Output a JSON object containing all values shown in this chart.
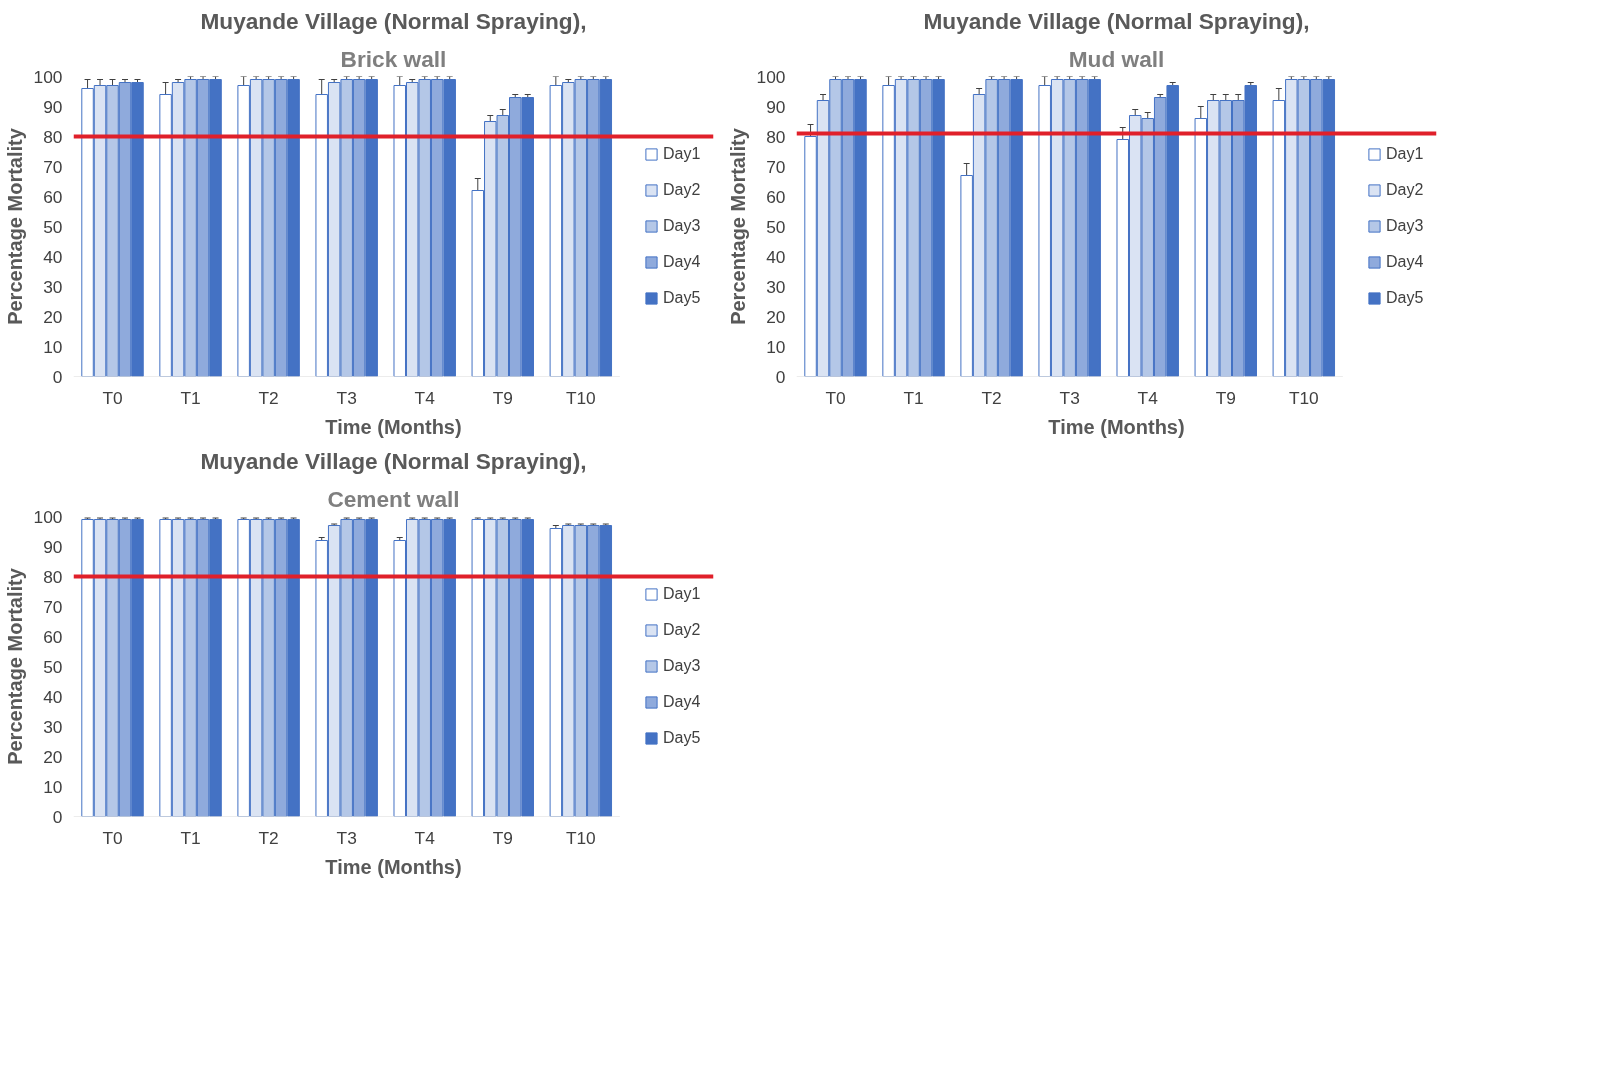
{
  "chart_data": [
    {
      "type": "bar",
      "title": "Muyande Village (Normal Spraying),",
      "subtitle": "Brick wall",
      "xlabel": "Time (Months)",
      "ylabel": "Percentage Mortality",
      "categories": [
        "T0",
        "T1",
        "T2",
        "T3",
        "T4",
        "T9",
        "T10"
      ],
      "ylim": [
        0,
        100
      ],
      "yticks": [
        0,
        10,
        20,
        30,
        40,
        50,
        60,
        70,
        80,
        90,
        100
      ],
      "grid": false,
      "legend": "right",
      "ref_lines": [
        {
          "axis": "y",
          "value": 80,
          "color": "#e0202a"
        }
      ],
      "series": [
        {
          "name": "Day1",
          "color": "#ffffff",
          "values": [
            96,
            94,
            97,
            94,
            97,
            62,
            97
          ],
          "errors": [
            3,
            4,
            3,
            5,
            3,
            4,
            3
          ]
        },
        {
          "name": "Day2",
          "color": "#dae3f3",
          "values": [
            97,
            98,
            99,
            98,
            98,
            85,
            98
          ],
          "errors": [
            2,
            1,
            1,
            1,
            1,
            2,
            1
          ]
        },
        {
          "name": "Day3",
          "color": "#b4c7e7",
          "values": [
            97,
            99,
            99,
            99,
            99,
            87,
            99
          ],
          "errors": [
            2,
            1,
            1,
            1,
            1,
            2,
            1
          ]
        },
        {
          "name": "Day4",
          "color": "#8faadc",
          "values": [
            98,
            99,
            99,
            99,
            99,
            93,
            99
          ],
          "errors": [
            1,
            1,
            1,
            1,
            1,
            1,
            1
          ]
        },
        {
          "name": "Day5",
          "color": "#4472c4",
          "values": [
            98,
            99,
            99,
            99,
            99,
            93,
            99
          ],
          "errors": [
            1,
            1,
            1,
            1,
            1,
            1,
            1
          ]
        }
      ]
    },
    {
      "type": "bar",
      "title": "Muyande Village (Normal Spraying),",
      "subtitle": "Mud wall",
      "xlabel": "Time (Months)",
      "ylabel": "Percentage Mortality",
      "categories": [
        "T0",
        "T1",
        "T2",
        "T3",
        "T4",
        "T9",
        "T10"
      ],
      "ylim": [
        0,
        100
      ],
      "yticks": [
        0,
        10,
        20,
        30,
        40,
        50,
        60,
        70,
        80,
        90,
        100
      ],
      "grid": false,
      "legend": "right",
      "ref_lines": [
        {
          "axis": "y",
          "value": 81,
          "color": "#e0202a"
        }
      ],
      "series": [
        {
          "name": "Day1",
          "color": "#ffffff",
          "values": [
            80,
            97,
            67,
            97,
            79,
            86,
            92
          ],
          "errors": [
            4,
            3,
            4,
            3,
            4,
            4,
            4
          ]
        },
        {
          "name": "Day2",
          "color": "#dae3f3",
          "values": [
            92,
            99,
            94,
            99,
            87,
            92,
            99
          ],
          "errors": [
            2,
            1,
            2,
            1,
            2,
            2,
            1
          ]
        },
        {
          "name": "Day3",
          "color": "#b4c7e7",
          "values": [
            99,
            99,
            99,
            99,
            86,
            92,
            99
          ],
          "errors": [
            1,
            1,
            1,
            1,
            2,
            2,
            1
          ]
        },
        {
          "name": "Day4",
          "color": "#8faadc",
          "values": [
            99,
            99,
            99,
            99,
            93,
            92,
            99
          ],
          "errors": [
            1,
            1,
            1,
            1,
            1,
            2,
            1
          ]
        },
        {
          "name": "Day5",
          "color": "#4472c4",
          "values": [
            99,
            99,
            99,
            99,
            97,
            97,
            99
          ],
          "errors": [
            1,
            1,
            1,
            1,
            1,
            1,
            1
          ]
        }
      ]
    },
    {
      "type": "bar",
      "title": "Muyande Village (Normal Spraying),",
      "subtitle": "Cement wall",
      "xlabel": "Time (Months)",
      "ylabel": "Percentage Mortality",
      "categories": [
        "T0",
        "T1",
        "T2",
        "T3",
        "T4",
        "T9",
        "T10"
      ],
      "ylim": [
        0,
        100
      ],
      "yticks": [
        0,
        10,
        20,
        30,
        40,
        50,
        60,
        70,
        80,
        90,
        100
      ],
      "grid": false,
      "legend": "right",
      "ref_lines": [
        {
          "axis": "y",
          "value": 80,
          "color": "#e0202a"
        }
      ],
      "series": [
        {
          "name": "Day1",
          "color": "#ffffff",
          "values": [
            99,
            99,
            99,
            92,
            92,
            99,
            96
          ],
          "errors": [
            0.5,
            0.5,
            0.5,
            1,
            1,
            0.5,
            1
          ]
        },
        {
          "name": "Day2",
          "color": "#dae3f3",
          "values": [
            99,
            99,
            99,
            97,
            99,
            99,
            97
          ],
          "errors": [
            0.5,
            0.5,
            0.5,
            0.5,
            0.5,
            0.5,
            0.5
          ]
        },
        {
          "name": "Day3",
          "color": "#b4c7e7",
          "values": [
            99,
            99,
            99,
            99,
            99,
            99,
            97
          ],
          "errors": [
            0.5,
            0.5,
            0.5,
            0.5,
            0.5,
            0.5,
            0.5
          ]
        },
        {
          "name": "Day4",
          "color": "#8faadc",
          "values": [
            99,
            99,
            99,
            99,
            99,
            99,
            97
          ],
          "errors": [
            0.5,
            0.5,
            0.5,
            0.5,
            0.5,
            0.5,
            0.5
          ]
        },
        {
          "name": "Day5",
          "color": "#4472c4",
          "values": [
            99,
            99,
            99,
            99,
            99,
            99,
            97
          ],
          "errors": [
            0.5,
            0.5,
            0.5,
            0.5,
            0.5,
            0.5,
            0.5
          ]
        }
      ]
    }
  ]
}
